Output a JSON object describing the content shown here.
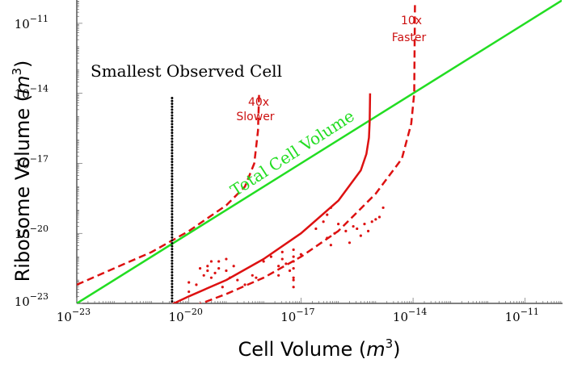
{
  "chart_data": {
    "type": "line",
    "xlabel": "Cell Volume",
    "ylabel": "Ribosome Volume",
    "unit": "m",
    "unit_exp": "3",
    "xscale": "log",
    "yscale": "log",
    "xlim": [
      1e-23,
      1e-10
    ],
    "ylim": [
      1e-23,
      1e-10
    ],
    "x_ticks": [
      {
        "base": "10",
        "exp": "−23",
        "value": -23
      },
      {
        "base": "10",
        "exp": "−20",
        "value": -20
      },
      {
        "base": "10",
        "exp": "−17",
        "value": -17
      },
      {
        "base": "10",
        "exp": "−14",
        "value": -14
      },
      {
        "base": "10",
        "exp": "−11",
        "value": -11
      }
    ],
    "y_ticks": [
      {
        "base": "10",
        "exp": "−23",
        "value": -23
      },
      {
        "base": "10",
        "exp": "−20",
        "value": -20
      },
      {
        "base": "10",
        "exp": "−17",
        "value": -17
      },
      {
        "base": "10",
        "exp": "−14",
        "value": -14
      },
      {
        "base": "10",
        "exp": "−11",
        "value": -11
      }
    ],
    "series": [
      {
        "style": "solid",
        "color": "#22dd22",
        "x": [
          -23,
          -10
        ],
        "y": [
          -23,
          -10
        ]
      },
      {
        "style": "solid",
        "color": "#dd1111",
        "x": [
          -21.5,
          -20.8,
          -20,
          -19,
          -18,
          -17,
          -16,
          -15.4,
          -15.25,
          -15.18,
          -15.16,
          -15.15
        ],
        "y": [
          -24.0,
          -23.3,
          -22.7,
          -22.0,
          -21.1,
          -20.0,
          -18.6,
          -17.3,
          -16.6,
          -15.9,
          -15.2,
          -14.0
        ]
      },
      {
        "style": "dashed",
        "color": "#dd1111",
        "x": [
          -23,
          -22,
          -21,
          -20,
          -19,
          -18.5,
          -18.25,
          -18.15,
          -18.12
        ],
        "y": [
          -22.2,
          -21.5,
          -20.8,
          -19.9,
          -18.8,
          -18.0,
          -17.0,
          -15.6,
          -14.0
        ]
      },
      {
        "style": "dashed",
        "color": "#dd1111",
        "x": [
          -20.7,
          -20,
          -19,
          -18,
          -17,
          -16,
          -15,
          -14.3,
          -14.05,
          -13.97,
          -13.95
        ],
        "y": [
          -23.6,
          -23.2,
          -22.6,
          -21.9,
          -21.0,
          -19.9,
          -18.3,
          -16.8,
          -15.3,
          -14.0,
          -10.2
        ]
      }
    ],
    "scatter_points": [
      [
        -20.0,
        -22.5
      ],
      [
        -20.0,
        -22.1
      ],
      [
        -19.8,
        -22.2
      ],
      [
        -19.7,
        -21.5
      ],
      [
        -19.6,
        -21.8
      ],
      [
        -19.5,
        -21.4
      ],
      [
        -19.5,
        -21.6
      ],
      [
        -19.4,
        -21.2
      ],
      [
        -19.4,
        -21.9
      ],
      [
        -19.3,
        -21.7
      ],
      [
        -19.2,
        -21.5
      ],
      [
        -19.2,
        -21.2
      ],
      [
        -19.1,
        -22.3
      ],
      [
        -19.0,
        -21.6
      ],
      [
        -19.0,
        -21.1
      ],
      [
        -18.9,
        -21.9
      ],
      [
        -18.8,
        -21.4
      ],
      [
        -18.7,
        -22.0
      ],
      [
        -18.5,
        -22.2
      ],
      [
        -18.3,
        -21.8
      ],
      [
        -18.2,
        -21.9
      ],
      [
        -18.0,
        -21.2
      ],
      [
        -17.8,
        -21.0
      ],
      [
        -17.6,
        -21.4
      ],
      [
        -17.6,
        -21.8
      ],
      [
        -17.5,
        -21.1
      ],
      [
        -17.5,
        -20.8
      ],
      [
        -17.4,
        -21.3
      ],
      [
        -17.3,
        -21.6
      ],
      [
        -17.2,
        -21.0
      ],
      [
        -17.2,
        -21.9
      ],
      [
        -17.0,
        -20.9
      ],
      [
        -17.2,
        -21.2
      ],
      [
        -17.2,
        -20.7
      ],
      [
        -17.2,
        -21.5
      ],
      [
        -17.2,
        -22.0
      ],
      [
        -17.2,
        -22.3
      ],
      [
        -16.6,
        -19.8
      ],
      [
        -16.4,
        -19.5
      ],
      [
        -16.3,
        -20.2
      ],
      [
        -16.3,
        -19.2
      ],
      [
        -16.2,
        -20.5
      ],
      [
        -16.2,
        -18.9
      ],
      [
        -16.1,
        -20.0
      ],
      [
        -16.0,
        -19.6
      ],
      [
        -15.8,
        -19.9
      ],
      [
        -15.7,
        -20.4
      ],
      [
        -15.6,
        -19.7
      ],
      [
        -15.5,
        -19.8
      ],
      [
        -15.4,
        -20.1
      ],
      [
        -15.3,
        -19.6
      ],
      [
        -15.2,
        -19.9
      ],
      [
        -15.1,
        -19.5
      ],
      [
        -15.0,
        -19.4
      ],
      [
        -14.9,
        -19.3
      ],
      [
        -14.8,
        -18.9
      ]
    ],
    "vline": {
      "x": -20.45,
      "ymin": -23,
      "ymax": -14.2
    },
    "annotations": {
      "smallest": "Smallest Observed Cell",
      "slower_1": "40x",
      "slower_2": "Slower",
      "faster_1": "10x",
      "faster_2": "Faster",
      "total": "Total Cell Volume"
    }
  }
}
